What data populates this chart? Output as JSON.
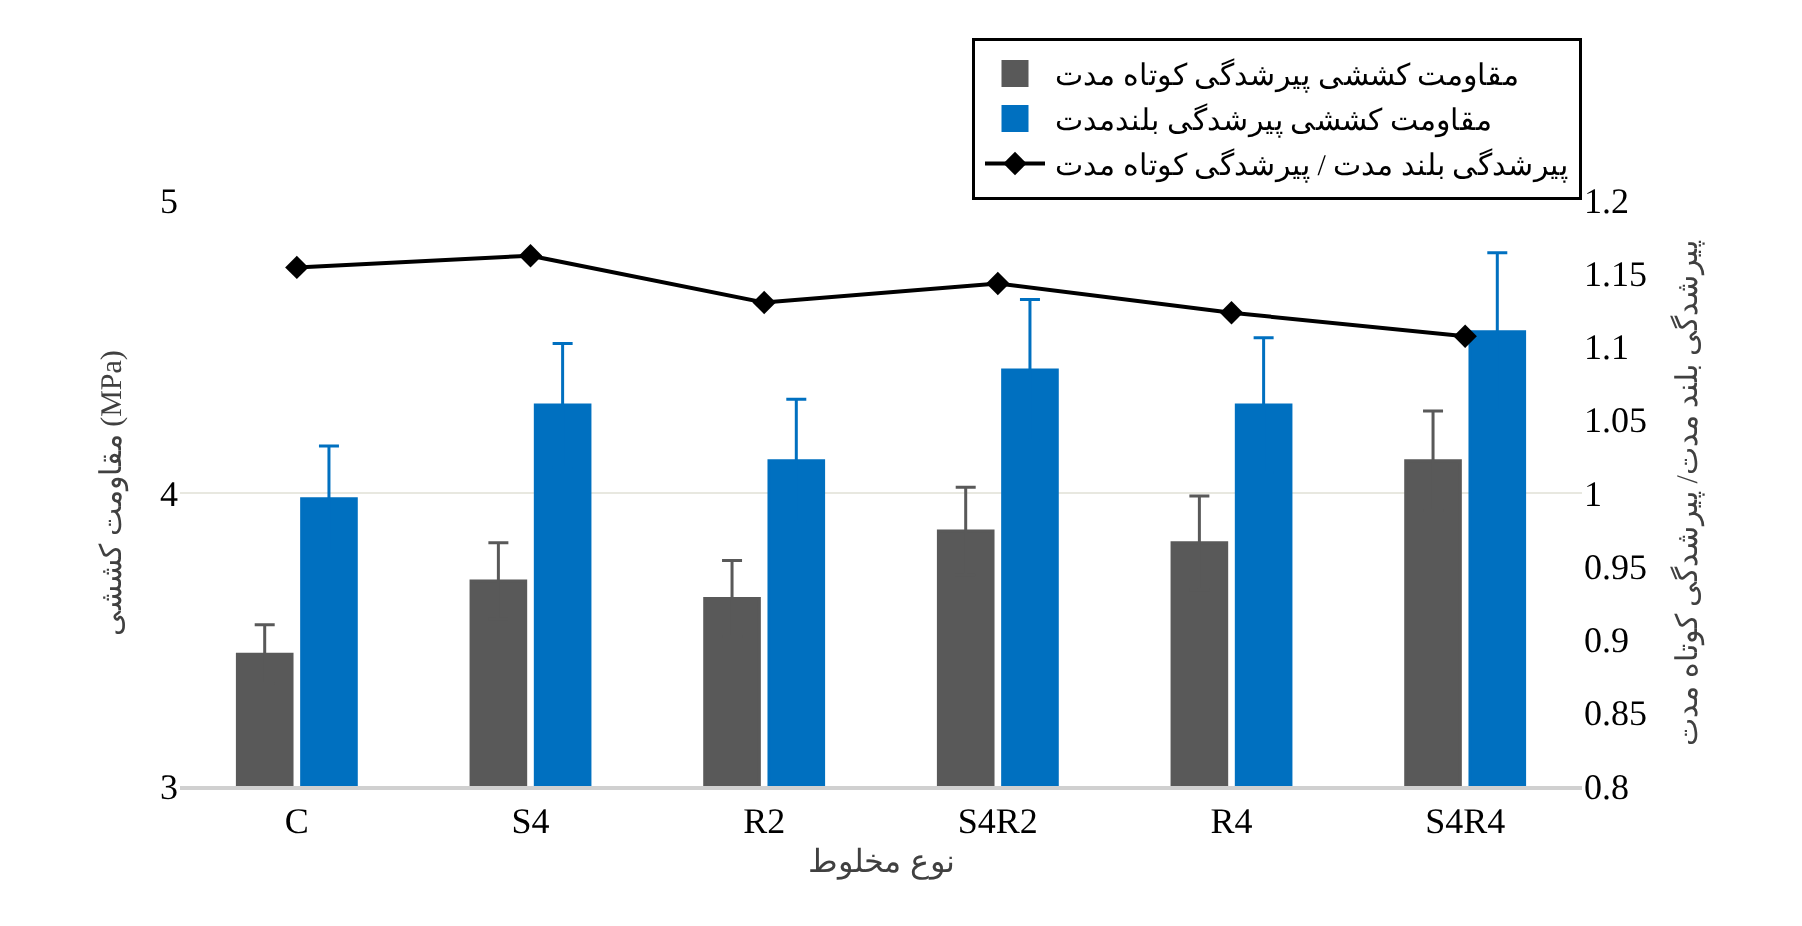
{
  "chart_data": {
    "type": "bar",
    "xlabel": "نوع مخلوط",
    "ylabel": "مقاومت کششی (MPa)",
    "y2label": "پیرشدگی بلند مدت/ پیرشدگی کوتاه مدت",
    "categories": [
      "C",
      "S4",
      "R2",
      "S4R2",
      "R4",
      "S4R4"
    ],
    "series": [
      {
        "name": "مقاومت کششی پیرشدگی کوتاه مدت",
        "color": "#595959",
        "values": [
          3.45,
          3.7,
          3.64,
          3.87,
          3.83,
          4.11
        ],
        "errors": [
          0.1,
          0.13,
          0.13,
          0.15,
          0.16,
          0.17
        ]
      },
      {
        "name": "مقاومت کششی پیرشدگی بلندمدت",
        "color": "#0070c0",
        "values": [
          3.98,
          4.3,
          4.11,
          4.42,
          4.3,
          4.55
        ],
        "errors": [
          0.18,
          0.21,
          0.21,
          0.24,
          0.23,
          0.27
        ]
      },
      {
        "name": "پیرشدگی بلند مدت / پیرشدگی کوتاه مدت",
        "type": "line",
        "axis": "y2",
        "color": "#000000",
        "marker": "diamond",
        "values": [
          1.154,
          1.162,
          1.13,
          1.143,
          1.123,
          1.107
        ]
      }
    ],
    "ylim": [
      3,
      5
    ],
    "yticks": [
      3,
      4,
      5
    ],
    "y2lim": [
      0.8,
      1.2
    ],
    "y2ticks": [
      0.8,
      0.85,
      0.9,
      0.95,
      1,
      1.05,
      1.1,
      1.15,
      1.2
    ],
    "grid": "y",
    "legend": "top right"
  }
}
